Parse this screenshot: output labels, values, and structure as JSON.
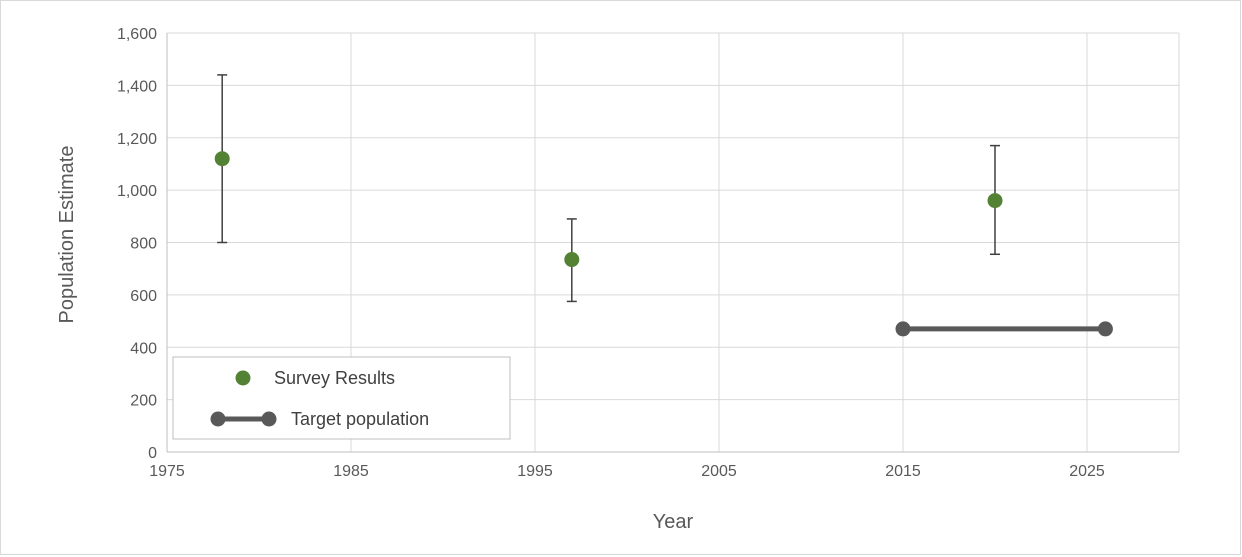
{
  "chart_data": {
    "type": "scatter",
    "xlabel": "Year",
    "ylabel": "Population Estimate",
    "xlim": [
      1975,
      2030
    ],
    "ylim": [
      0,
      1600
    ],
    "xticks": [
      1975,
      1985,
      1995,
      2005,
      2015,
      2025
    ],
    "yticks": [
      0,
      200,
      400,
      600,
      800,
      1000,
      1200,
      1400,
      1600
    ],
    "xtick_labels": [
      "1975",
      "1985",
      "1995",
      "2005",
      "2015",
      "2025"
    ],
    "ytick_labels": [
      "0",
      "200",
      "400",
      "600",
      "800",
      "1,000",
      "1,200",
      "1,400",
      "1,600"
    ],
    "grid": true,
    "legend_position": "bottom-left",
    "series": [
      {
        "name": "Survey Results",
        "kind": "points-with-error-bars",
        "color": "#548235",
        "points": [
          {
            "x": 1978,
            "y": 1120,
            "low": 800,
            "high": 1440
          },
          {
            "x": 1997,
            "y": 735,
            "low": 575,
            "high": 890
          },
          {
            "x": 2020,
            "y": 960,
            "low": 755,
            "high": 1170
          }
        ]
      },
      {
        "name": "Target population",
        "kind": "line-with-markers",
        "color": "#595959",
        "points": [
          {
            "x": 2015,
            "y": 470
          },
          {
            "x": 2026,
            "y": 470
          }
        ]
      }
    ]
  },
  "colors": {
    "grid": "#d9d9d9",
    "axis": "#bfbfbf",
    "errorbar": "#404040"
  }
}
